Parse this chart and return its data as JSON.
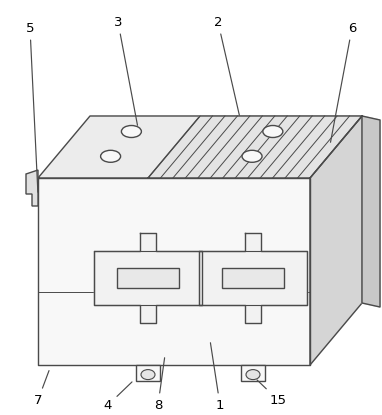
{
  "bg_color": "#ffffff",
  "line_color": "#4a4a4a",
  "fill_top": "#ececec",
  "fill_top_left": "#e0e0e0",
  "fill_front": "#f8f8f8",
  "fill_right": "#d5d5d5",
  "fill_right_edge": "#c8c8c8",
  "fill_hatch": "#e4e4e4",
  "figsize": [
    3.82,
    4.15
  ],
  "dpi": 100,
  "lw": 1.0
}
